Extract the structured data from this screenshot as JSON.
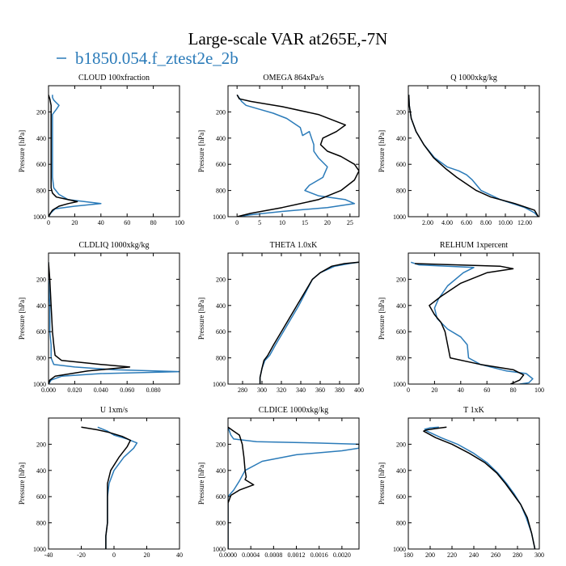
{
  "figure": {
    "title": "Large-scale VAR at265E,-7N",
    "legend_label": "b1850.054.f_ztest2e_2b",
    "legend_color": "#2b7bb9",
    "control_color": "#000000"
  },
  "chart_data": [
    {
      "type": "line",
      "title": "CLOUD  100xfraction",
      "ylabel": "Pressure [hPa]",
      "xlim": [
        0,
        100
      ],
      "ylim": [
        1000,
        0
      ],
      "xticks": [
        0,
        20,
        40,
        60,
        80,
        100
      ],
      "xtick_labels": [
        "0",
        "20",
        "40",
        "60",
        "80",
        "100"
      ],
      "yticks": [
        200,
        400,
        600,
        800,
        1000
      ],
      "ytick_labels": [
        "200",
        "400",
        "600",
        "800",
        "1000"
      ],
      "series": [
        {
          "name": "b1850.054.f_ztest2e_2b",
          "color": "#2b7bb9",
          "x": [
            3,
            3,
            4,
            6,
            8,
            6,
            3,
            3,
            3,
            3,
            3,
            3,
            4,
            8,
            15,
            40,
            20,
            5,
            2,
            0
          ],
          "y": [
            70,
            90,
            110,
            130,
            150,
            180,
            220,
            300,
            400,
            500,
            600,
            700,
            780,
            830,
            870,
            900,
            920,
            940,
            970,
            1000
          ]
        },
        {
          "name": "",
          "color": "#000000",
          "x": [
            0,
            1,
            2,
            2,
            2,
            2,
            2,
            2,
            2,
            2,
            3,
            6,
            15,
            22,
            15,
            8,
            3,
            1,
            0
          ],
          "y": [
            70,
            100,
            150,
            200,
            300,
            400,
            500,
            600,
            700,
            780,
            820,
            850,
            870,
            885,
            900,
            920,
            950,
            980,
            1000
          ]
        }
      ]
    },
    {
      "type": "line",
      "title": "OMEGA  864xPa/s",
      "ylabel": "Pressure [hPa]",
      "xlim": [
        -2,
        27
      ],
      "ylim": [
        1000,
        0
      ],
      "xticks": [
        0,
        5,
        10,
        15,
        20,
        25
      ],
      "xtick_labels": [
        "0",
        "5",
        "10",
        "15",
        "20",
        "25"
      ],
      "yticks": [
        200,
        400,
        600,
        800,
        1000
      ],
      "ytick_labels": [
        "200",
        "400",
        "600",
        "800",
        "1000"
      ],
      "series": [
        {
          "name": "b1850.054.f_ztest2e_2b",
          "color": "#2b7bb9",
          "x": [
            0,
            1,
            2,
            5,
            8,
            11,
            14,
            14.5,
            16,
            16.5,
            17,
            17,
            18,
            20,
            19,
            16,
            15,
            18,
            24,
            26,
            20,
            10,
            3,
            0
          ],
          "y": [
            70,
            120,
            150,
            180,
            210,
            250,
            320,
            380,
            350,
            400,
            450,
            500,
            550,
            620,
            700,
            760,
            800,
            840,
            870,
            900,
            930,
            960,
            985,
            1000
          ]
        },
        {
          "name": "",
          "color": "#000000",
          "x": [
            0,
            0.5,
            3,
            10,
            18,
            24,
            22,
            19,
            18.5,
            20,
            23,
            26,
            27,
            26,
            23,
            18,
            10,
            3,
            0
          ],
          "y": [
            70,
            100,
            120,
            160,
            220,
            300,
            350,
            400,
            450,
            500,
            540,
            600,
            650,
            720,
            800,
            870,
            930,
            975,
            1000
          ]
        }
      ]
    },
    {
      "type": "line",
      "title": "Q  1000xkg/kg",
      "ylabel": "Pressure [hPa]",
      "xlim": [
        0,
        13.5
      ],
      "ylim": [
        1000,
        0
      ],
      "xticks": [
        2,
        4,
        6,
        8,
        10,
        12
      ],
      "xtick_labels": [
        "2.00",
        "4.00",
        "6.00",
        "8.00",
        "10.00",
        "12.00"
      ],
      "yticks": [
        200,
        400,
        600,
        800,
        1000
      ],
      "ytick_labels": [
        "200",
        "400",
        "600",
        "800",
        "1000"
      ],
      "series": [
        {
          "name": "b1850.054.f_ztest2e_2b",
          "color": "#2b7bb9",
          "x": [
            0.05,
            0.1,
            0.3,
            0.8,
            1.6,
            2.7,
            4.0,
            5.2,
            6.0,
            6.6,
            7.5,
            9.5,
            12.0,
            13.0,
            13.4
          ],
          "y": [
            70,
            150,
            250,
            350,
            450,
            550,
            620,
            650,
            680,
            720,
            800,
            870,
            930,
            970,
            1000
          ]
        },
        {
          "name": "",
          "color": "#000000",
          "x": [
            0.05,
            0.1,
            0.3,
            0.8,
            1.6,
            2.6,
            3.8,
            5.0,
            6.2,
            7.0,
            8.5,
            11.0,
            13.0,
            13.4
          ],
          "y": [
            70,
            150,
            250,
            350,
            450,
            550,
            630,
            700,
            760,
            800,
            850,
            900,
            950,
            1000
          ]
        }
      ]
    },
    {
      "type": "line",
      "title": "CLDLIQ  1000xkg/kg",
      "ylabel": "Pressure [hPa]",
      "xlim": [
        0,
        0.1
      ],
      "ylim": [
        1000,
        0
      ],
      "xticks": [
        0,
        0.02,
        0.04,
        0.06,
        0.08
      ],
      "xtick_labels": [
        "0.000",
        "0.020",
        "0.040",
        "0.060",
        "0.080"
      ],
      "yticks": [
        200,
        400,
        600,
        800,
        1000
      ],
      "ytick_labels": [
        "200",
        "400",
        "600",
        "800",
        "1000"
      ],
      "series": [
        {
          "name": "b1850.054.f_ztest2e_2b",
          "color": "#2b7bb9",
          "x": [
            0,
            0,
            0.001,
            0.001,
            0.002,
            0.002,
            0.004,
            0.02,
            0.05,
            0.1,
            0.04,
            0.01,
            0.002,
            0
          ],
          "y": [
            70,
            200,
            400,
            600,
            700,
            800,
            850,
            870,
            890,
            905,
            920,
            940,
            970,
            1000
          ]
        },
        {
          "name": "",
          "color": "#000000",
          "x": [
            0,
            0.001,
            0.002,
            0.003,
            0.004,
            0.005,
            0.01,
            0.04,
            0.062,
            0.03,
            0.005,
            0.001,
            0
          ],
          "y": [
            70,
            200,
            400,
            600,
            700,
            780,
            820,
            850,
            870,
            900,
            940,
            970,
            1000
          ]
        }
      ]
    },
    {
      "type": "line",
      "title": "THETA  1.0xK",
      "ylabel": "Pressure [hPa]",
      "xlim": [
        265,
        400
      ],
      "ylim": [
        1000,
        0
      ],
      "xticks": [
        280,
        300,
        320,
        340,
        360,
        380,
        400
      ],
      "xtick_labels": [
        "280",
        "300",
        "320",
        "340",
        "360",
        "380",
        "400"
      ],
      "yticks": [
        200,
        400,
        600,
        800,
        1000
      ],
      "ytick_labels": [
        "200",
        "400",
        "600",
        "800",
        "1000"
      ],
      "series": [
        {
          "name": "b1850.054.f_ztest2e_2b",
          "color": "#2b7bb9",
          "x": [
            400,
            390,
            375,
            360,
            352,
            345,
            338,
            330,
            322,
            314,
            308,
            303,
            300,
            298,
            298
          ],
          "y": [
            70,
            80,
            100,
            150,
            200,
            300,
            400,
            500,
            600,
            700,
            780,
            820,
            880,
            950,
            1000
          ]
        },
        {
          "name": "",
          "color": "#000000",
          "x": [
            400,
            385,
            372,
            360,
            352,
            344,
            336,
            328,
            320,
            312,
            306,
            302,
            300,
            298,
            298
          ],
          "y": [
            70,
            80,
            100,
            150,
            200,
            300,
            400,
            500,
            600,
            700,
            780,
            820,
            880,
            950,
            1000
          ]
        }
      ]
    },
    {
      "type": "line",
      "title": "RELHUM  1xpercent",
      "ylabel": "Pressure [hPa]",
      "xlim": [
        0,
        100
      ],
      "ylim": [
        1000,
        0
      ],
      "xticks": [
        0,
        20,
        40,
        60,
        80,
        100
      ],
      "xtick_labels": [
        "0",
        "20",
        "40",
        "60",
        "80",
        "100"
      ],
      "yticks": [
        200,
        400,
        600,
        800,
        1000
      ],
      "ytick_labels": [
        "200",
        "400",
        "600",
        "800",
        "1000"
      ],
      "series": [
        {
          "name": "b1850.054.f_ztest2e_2b",
          "color": "#2b7bb9",
          "x": [
            2,
            8,
            50,
            42,
            30,
            23,
            20,
            22,
            30,
            40,
            45,
            46,
            55,
            75,
            90,
            95,
            92,
            85
          ],
          "y": [
            70,
            90,
            110,
            150,
            250,
            350,
            420,
            500,
            580,
            640,
            700,
            800,
            850,
            900,
            920,
            960,
            990,
            1000
          ]
        },
        {
          "name": "",
          "color": "#000000",
          "x": [
            5,
            70,
            80,
            60,
            40,
            25,
            16,
            20,
            25,
            28,
            30,
            32,
            55,
            80,
            88,
            85,
            78
          ],
          "y": [
            80,
            100,
            120,
            150,
            230,
            330,
            400,
            470,
            530,
            600,
            700,
            800,
            850,
            890,
            930,
            970,
            1000
          ]
        }
      ]
    },
    {
      "type": "line",
      "title": "U  1xm/s",
      "ylabel": "Pressure [hPa]",
      "xlim": [
        -40,
        40
      ],
      "ylim": [
        1000,
        0
      ],
      "xticks": [
        -40,
        -20,
        0,
        20,
        40
      ],
      "xtick_labels": [
        "-40",
        "-20",
        "0",
        "20",
        "40"
      ],
      "yticks": [
        200,
        400,
        600,
        800,
        1000
      ],
      "ytick_labels": [
        "200",
        "400",
        "600",
        "800",
        "1000"
      ],
      "series": [
        {
          "name": "b1850.054.f_ztest2e_2b",
          "color": "#2b7bb9",
          "x": [
            -10,
            -4,
            0,
            8,
            14,
            12,
            6,
            0,
            -3,
            -4,
            -4,
            -4,
            -5,
            -5
          ],
          "y": [
            70,
            100,
            130,
            160,
            190,
            230,
            300,
            400,
            500,
            600,
            700,
            800,
            900,
            1000
          ]
        },
        {
          "name": "",
          "color": "#000000",
          "x": [
            -20,
            -10,
            -3,
            5,
            10,
            8,
            3,
            -2,
            -4,
            -4,
            -4,
            -4,
            -5,
            -5
          ],
          "y": [
            70,
            90,
            110,
            140,
            170,
            220,
            300,
            400,
            500,
            600,
            700,
            800,
            900,
            1000
          ]
        }
      ]
    },
    {
      "type": "line",
      "title": "CLDICE  1000xkg/kg",
      "ylabel": "Pressure [hPa]",
      "xlim": [
        0,
        0.0023
      ],
      "ylim": [
        1000,
        0
      ],
      "xticks": [
        0,
        0.0004,
        0.0008,
        0.0012,
        0.0016,
        0.002
      ],
      "xtick_labels": [
        "0.0000",
        "0.0004",
        "0.0008",
        "0.0012",
        "0.0016",
        "0.0020"
      ],
      "yticks": [
        200,
        400,
        600,
        800,
        1000
      ],
      "ytick_labels": [
        "200",
        "400",
        "600",
        "800",
        "1000"
      ],
      "series": [
        {
          "name": "b1850.054.f_ztest2e_2b",
          "color": "#2b7bb9",
          "x": [
            0,
            5e-05,
            0.0001,
            0.0005,
            0.0015,
            0.0023,
            0.0023,
            0.002,
            0.0012,
            0.0006,
            0.0003,
            0.0002,
            0.0001,
            0,
            0,
            0
          ],
          "y": [
            70,
            130,
            160,
            180,
            190,
            200,
            230,
            250,
            280,
            330,
            400,
            480,
            550,
            600,
            800,
            1000
          ]
        },
        {
          "name": "",
          "color": "#000000",
          "x": [
            0,
            0.0001,
            0.0002,
            0.00025,
            0.00028,
            0.0003,
            0.00032,
            0.0003,
            0.00045,
            0.0002,
            5e-05,
            0,
            0
          ],
          "y": [
            70,
            100,
            130,
            200,
            300,
            400,
            450,
            470,
            510,
            550,
            590,
            650,
            1000
          ]
        }
      ]
    },
    {
      "type": "line",
      "title": "T  1xK",
      "ylabel": "Pressure [hPa]",
      "xlim": [
        180,
        300
      ],
      "ylim": [
        1000,
        0
      ],
      "xticks": [
        180,
        200,
        220,
        240,
        260,
        280,
        300
      ],
      "xtick_labels": [
        "180",
        "200",
        "220",
        "240",
        "260",
        "280",
        "300"
      ],
      "yticks": [
        200,
        400,
        600,
        800,
        1000
      ],
      "ytick_labels": [
        "200",
        "400",
        "600",
        "800",
        "1000"
      ],
      "series": [
        {
          "name": "b1850.054.f_ztest2e_2b",
          "color": "#2b7bb9",
          "x": [
            208,
            200,
            195,
            197,
            210,
            225,
            240,
            252,
            262,
            270,
            277,
            283,
            288,
            293,
            296
          ],
          "y": [
            70,
            75,
            85,
            100,
            150,
            200,
            270,
            340,
            420,
            500,
            580,
            660,
            760,
            880,
            1000
          ]
        },
        {
          "name": "",
          "color": "#000000",
          "x": [
            215,
            205,
            197,
            194,
            205,
            220,
            236,
            250,
            261,
            269,
            276,
            283,
            289,
            293,
            296
          ],
          "y": [
            70,
            80,
            90,
            100,
            150,
            200,
            270,
            340,
            420,
            500,
            580,
            660,
            760,
            880,
            1000
          ]
        }
      ]
    }
  ]
}
